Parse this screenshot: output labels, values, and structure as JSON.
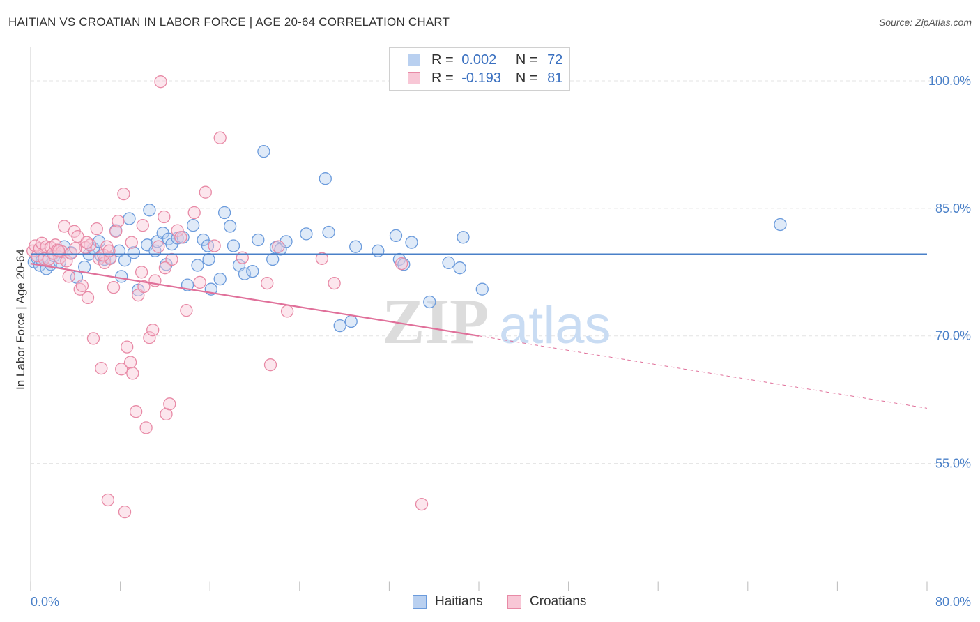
{
  "title": "HAITIAN VS CROATIAN IN LABOR FORCE | AGE 20-64 CORRELATION CHART",
  "source": "Source: ZipAtlas.com",
  "legend": {
    "rows": [
      {
        "r_label": "R =",
        "r_value": "0.002",
        "n_label": "N =",
        "n_value": "72",
        "color": "#6b9bdc",
        "fill": "#b9d0f0"
      },
      {
        "r_label": "R =",
        "r_value": "-0.193",
        "n_label": "N =",
        "n_value": "81",
        "color": "#e88aa6",
        "fill": "#f8c7d6"
      }
    ]
  },
  "bottom_legend": [
    {
      "label": "Haitians",
      "color": "#6b9bdc",
      "fill": "#b9d0f0"
    },
    {
      "label": "Croatians",
      "color": "#e88aa6",
      "fill": "#f8c7d6"
    }
  ],
  "watermark": {
    "zip": "ZIP",
    "atlas": "atlas"
  },
  "chart_data": {
    "type": "scatter",
    "title": "HAITIAN VS CROATIAN IN LABOR FORCE | AGE 20-64 CORRELATION CHART",
    "xlabel": "",
    "ylabel": "In Labor Force | Age 20-64",
    "xlim": [
      0,
      80
    ],
    "ylim": [
      40,
      103
    ],
    "x_tick_labels": [
      "0.0%",
      "80.0%"
    ],
    "y_ticks": [
      55,
      70,
      85,
      100
    ],
    "y_tick_labels": [
      "55.0%",
      "70.0%",
      "85.0%",
      "100.0%"
    ],
    "grid": true,
    "colors": {
      "haitians": "#4a80c8",
      "croatians": "#e0709a"
    },
    "series": [
      {
        "name": "Haitians",
        "r": 0.002,
        "n": 72,
        "trend": {
          "x": [
            0,
            80
          ],
          "y": [
            79.6,
            79.6
          ]
        },
        "points": [
          [
            0.3,
            78.7
          ],
          [
            0.6,
            79.1
          ],
          [
            0.8,
            78.3
          ],
          [
            1.0,
            78.9
          ],
          [
            1.4,
            77.9
          ],
          [
            1.8,
            78.4
          ],
          [
            2.1,
            79.4
          ],
          [
            2.6,
            78.7
          ],
          [
            3.0,
            80.5
          ],
          [
            3.6,
            79.8
          ],
          [
            4.1,
            76.9
          ],
          [
            4.8,
            78.1
          ],
          [
            5.2,
            79.6
          ],
          [
            5.6,
            80.3
          ],
          [
            6.1,
            81.1
          ],
          [
            6.3,
            79.4
          ],
          [
            6.6,
            79.0
          ],
          [
            7.1,
            79.2
          ],
          [
            7.6,
            82.4
          ],
          [
            7.9,
            80.0
          ],
          [
            8.1,
            77.0
          ],
          [
            8.4,
            78.9
          ],
          [
            8.8,
            83.8
          ],
          [
            9.2,
            79.8
          ],
          [
            9.6,
            75.4
          ],
          [
            10.4,
            80.7
          ],
          [
            10.6,
            84.8
          ],
          [
            11.1,
            80.0
          ],
          [
            11.3,
            81.1
          ],
          [
            11.8,
            82.1
          ],
          [
            12.1,
            78.4
          ],
          [
            12.3,
            81.4
          ],
          [
            12.6,
            80.8
          ],
          [
            13.1,
            81.5
          ],
          [
            13.6,
            81.6
          ],
          [
            14.0,
            76.0
          ],
          [
            14.5,
            83.0
          ],
          [
            14.9,
            78.3
          ],
          [
            15.4,
            81.3
          ],
          [
            15.8,
            80.6
          ],
          [
            16.1,
            75.5
          ],
          [
            16.9,
            76.7
          ],
          [
            17.3,
            84.5
          ],
          [
            17.8,
            82.9
          ],
          [
            18.1,
            80.6
          ],
          [
            18.6,
            78.3
          ],
          [
            19.1,
            77.3
          ],
          [
            19.8,
            77.6
          ],
          [
            20.3,
            81.3
          ],
          [
            20.8,
            91.7
          ],
          [
            21.6,
            79.0
          ],
          [
            21.9,
            80.4
          ],
          [
            22.3,
            80.2
          ],
          [
            22.8,
            81.1
          ],
          [
            26.3,
            88.5
          ],
          [
            26.6,
            82.2
          ],
          [
            27.6,
            71.2
          ],
          [
            28.6,
            71.7
          ],
          [
            32.6,
            81.8
          ],
          [
            32.9,
            79.0
          ],
          [
            33.3,
            78.4
          ],
          [
            35.6,
            74.0
          ],
          [
            37.3,
            78.6
          ],
          [
            38.3,
            78.0
          ],
          [
            38.6,
            81.6
          ],
          [
            40.3,
            75.5
          ],
          [
            66.9,
            83.1
          ],
          [
            24.6,
            82.0
          ],
          [
            29.0,
            80.5
          ],
          [
            31.0,
            80.0
          ],
          [
            34.0,
            81.0
          ],
          [
            15.9,
            79.0
          ]
        ]
      },
      {
        "name": "Croatians",
        "r": -0.193,
        "n": 81,
        "trend": {
          "x": [
            0,
            40
          ],
          "y": [
            78.5,
            70.0
          ]
        },
        "trend_dashed": {
          "x": [
            40,
            80
          ],
          "y": [
            70.0,
            61.5
          ]
        },
        "points": [
          [
            0.2,
            80.0
          ],
          [
            0.4,
            80.6
          ],
          [
            0.6,
            79.4
          ],
          [
            0.8,
            80.3
          ],
          [
            1.0,
            80.9
          ],
          [
            1.2,
            79.1
          ],
          [
            1.4,
            80.5
          ],
          [
            1.6,
            79.0
          ],
          [
            1.8,
            80.4
          ],
          [
            2.0,
            79.7
          ],
          [
            2.2,
            80.7
          ],
          [
            2.4,
            80.1
          ],
          [
            2.6,
            79.2
          ],
          [
            2.8,
            79.9
          ],
          [
            3.0,
            82.9
          ],
          [
            3.2,
            78.8
          ],
          [
            3.4,
            77.0
          ],
          [
            3.6,
            79.7
          ],
          [
            3.9,
            82.3
          ],
          [
            4.2,
            81.7
          ],
          [
            4.4,
            75.5
          ],
          [
            4.6,
            75.9
          ],
          [
            4.9,
            80.4
          ],
          [
            5.1,
            74.5
          ],
          [
            5.3,
            80.7
          ],
          [
            5.6,
            69.7
          ],
          [
            5.9,
            82.6
          ],
          [
            6.1,
            79.1
          ],
          [
            6.3,
            66.2
          ],
          [
            6.6,
            78.6
          ],
          [
            6.8,
            80.5
          ],
          [
            7.1,
            79.1
          ],
          [
            7.4,
            75.7
          ],
          [
            7.6,
            82.3
          ],
          [
            7.8,
            83.5
          ],
          [
            8.1,
            66.1
          ],
          [
            8.3,
            86.7
          ],
          [
            8.6,
            68.7
          ],
          [
            8.9,
            66.9
          ],
          [
            9.1,
            65.6
          ],
          [
            9.4,
            61.1
          ],
          [
            9.6,
            74.8
          ],
          [
            9.9,
            77.5
          ],
          [
            10.1,
            75.8
          ],
          [
            10.3,
            59.2
          ],
          [
            10.6,
            69.8
          ],
          [
            10.9,
            70.7
          ],
          [
            11.1,
            76.5
          ],
          [
            11.4,
            80.5
          ],
          [
            11.6,
            99.9
          ],
          [
            11.9,
            84.0
          ],
          [
            12.1,
            60.8
          ],
          [
            12.4,
            62.0
          ],
          [
            12.6,
            79.0
          ],
          [
            13.1,
            82.4
          ],
          [
            13.4,
            81.6
          ],
          [
            13.9,
            73.0
          ],
          [
            14.6,
            84.5
          ],
          [
            15.1,
            76.3
          ],
          [
            15.6,
            86.9
          ],
          [
            16.4,
            80.6
          ],
          [
            16.9,
            93.3
          ],
          [
            18.9,
            79.2
          ],
          [
            21.1,
            76.2
          ],
          [
            21.4,
            66.6
          ],
          [
            22.1,
            80.5
          ],
          [
            22.9,
            72.9
          ],
          [
            26.0,
            79.1
          ],
          [
            27.1,
            76.2
          ],
          [
            33.1,
            78.5
          ],
          [
            34.9,
            50.2
          ],
          [
            6.9,
            50.7
          ],
          [
            8.4,
            49.3
          ],
          [
            2.5,
            80.0
          ],
          [
            4.0,
            80.3
          ],
          [
            5.0,
            81.0
          ],
          [
            6.5,
            79.5
          ],
          [
            7.0,
            80.0
          ],
          [
            9.0,
            81.0
          ],
          [
            10.0,
            83.0
          ],
          [
            12.0,
            78.0
          ]
        ]
      }
    ]
  }
}
